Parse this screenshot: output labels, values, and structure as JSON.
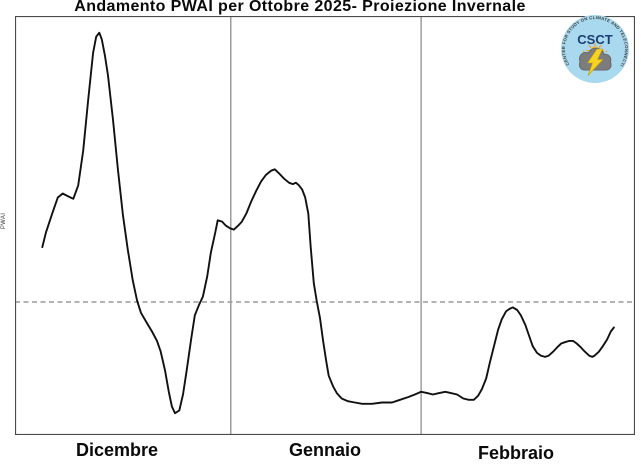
{
  "title": "Andamento PWAI per Ottobre 2025- Proiezione Invernale",
  "y_axis_label": "PWAI",
  "logo": {
    "acronym": "CSCT",
    "ring_text": "CENTER FOR STUDY ON CLIMATE AND TELECONNECTIONS",
    "colors": {
      "circle": "#a9d9ef",
      "acronym": "#1c3e70",
      "ring_text": "#3c3c3c",
      "cloud": "#7c7c7c",
      "cloud_outline": "#666666",
      "lightning": "#f6d321",
      "sun": "#f2a33c"
    }
  },
  "colors": {
    "line": "#111111",
    "grid": "#8f8f8f",
    "zero_dashed": "#9a9a9a",
    "border": "#4a4a4a",
    "background": "#ffffff"
  },
  "chart_data": {
    "type": "line",
    "title": "Andamento PWAI per Ottobre 2025- Proiezione Invernale",
    "ylabel": "PWAI",
    "legend": "none",
    "y_tick_labels": "none (unlabeled axis)",
    "zero_reference": "horizontal dashed line at PWAI = 0",
    "ylim": [
      -1.0,
      2.15
    ],
    "x_axis": {
      "categories": [
        "Dicembre",
        "Gennaio",
        "Febbraio"
      ],
      "boundaries_frac": [
        0,
        0.348,
        0.655,
        1
      ]
    },
    "series": [
      {
        "name": "PWAI",
        "x_unit": "fraction of Dicembre–Febbraio span",
        "y_unit": "PWAI index relative to dashed zero line",
        "points": [
          [
            0.044,
            0.41
          ],
          [
            0.05,
            0.52
          ],
          [
            0.06,
            0.66
          ],
          [
            0.069,
            0.78
          ],
          [
            0.077,
            0.81
          ],
          [
            0.085,
            0.79
          ],
          [
            0.094,
            0.77
          ],
          [
            0.102,
            0.87
          ],
          [
            0.11,
            1.13
          ],
          [
            0.118,
            1.51
          ],
          [
            0.126,
            1.86
          ],
          [
            0.131,
            1.98
          ],
          [
            0.136,
            2.01
          ],
          [
            0.14,
            1.96
          ],
          [
            0.145,
            1.84
          ],
          [
            0.15,
            1.69
          ],
          [
            0.158,
            1.36
          ],
          [
            0.166,
            0.99
          ],
          [
            0.174,
            0.65
          ],
          [
            0.182,
            0.39
          ],
          [
            0.19,
            0.16
          ],
          [
            0.197,
            0.01
          ],
          [
            0.203,
            -0.08
          ],
          [
            0.213,
            -0.16
          ],
          [
            0.221,
            -0.22
          ],
          [
            0.229,
            -0.29
          ],
          [
            0.235,
            -0.37
          ],
          [
            0.242,
            -0.51
          ],
          [
            0.248,
            -0.67
          ],
          [
            0.253,
            -0.78
          ],
          [
            0.258,
            -0.83
          ],
          [
            0.265,
            -0.81
          ],
          [
            0.271,
            -0.69
          ],
          [
            0.277,
            -0.51
          ],
          [
            0.284,
            -0.28
          ],
          [
            0.29,
            -0.1
          ],
          [
            0.297,
            -0.02
          ],
          [
            0.303,
            0.04
          ],
          [
            0.31,
            0.19
          ],
          [
            0.316,
            0.37
          ],
          [
            0.323,
            0.52
          ],
          [
            0.327,
            0.61
          ],
          [
            0.334,
            0.6
          ],
          [
            0.34,
            0.57
          ],
          [
            0.347,
            0.55
          ],
          [
            0.353,
            0.54
          ],
          [
            0.36,
            0.57
          ],
          [
            0.366,
            0.6
          ],
          [
            0.373,
            0.66
          ],
          [
            0.381,
            0.75
          ],
          [
            0.389,
            0.83
          ],
          [
            0.397,
            0.9
          ],
          [
            0.405,
            0.95
          ],
          [
            0.413,
            0.98
          ],
          [
            0.419,
            0.99
          ],
          [
            0.426,
            0.96
          ],
          [
            0.434,
            0.92
          ],
          [
            0.442,
            0.89
          ],
          [
            0.448,
            0.88
          ],
          [
            0.453,
            0.89
          ],
          [
            0.458,
            0.87
          ],
          [
            0.463,
            0.84
          ],
          [
            0.468,
            0.78
          ],
          [
            0.473,
            0.66
          ],
          [
            0.477,
            0.41
          ],
          [
            0.482,
            0.14
          ],
          [
            0.487,
            0.0
          ],
          [
            0.492,
            -0.12
          ],
          [
            0.497,
            -0.29
          ],
          [
            0.502,
            -0.44
          ],
          [
            0.506,
            -0.55
          ],
          [
            0.513,
            -0.63
          ],
          [
            0.519,
            -0.68
          ],
          [
            0.527,
            -0.72
          ],
          [
            0.537,
            -0.74
          ],
          [
            0.548,
            -0.75
          ],
          [
            0.56,
            -0.76
          ],
          [
            0.576,
            -0.76
          ],
          [
            0.592,
            -0.75
          ],
          [
            0.608,
            -0.75
          ],
          [
            0.621,
            -0.73
          ],
          [
            0.634,
            -0.71
          ],
          [
            0.645,
            -0.69
          ],
          [
            0.655,
            -0.67
          ],
          [
            0.665,
            -0.68
          ],
          [
            0.674,
            -0.69
          ],
          [
            0.684,
            -0.68
          ],
          [
            0.694,
            -0.67
          ],
          [
            0.703,
            -0.68
          ],
          [
            0.713,
            -0.69
          ],
          [
            0.723,
            -0.72
          ],
          [
            0.732,
            -0.73
          ],
          [
            0.74,
            -0.73
          ],
          [
            0.747,
            -0.7
          ],
          [
            0.753,
            -0.65
          ],
          [
            0.76,
            -0.57
          ],
          [
            0.766,
            -0.45
          ],
          [
            0.773,
            -0.32
          ],
          [
            0.779,
            -0.21
          ],
          [
            0.785,
            -0.13
          ],
          [
            0.792,
            -0.07
          ],
          [
            0.798,
            -0.05
          ],
          [
            0.803,
            -0.04
          ],
          [
            0.81,
            -0.06
          ],
          [
            0.816,
            -0.1
          ],
          [
            0.823,
            -0.17
          ],
          [
            0.829,
            -0.25
          ],
          [
            0.835,
            -0.33
          ],
          [
            0.842,
            -0.38
          ],
          [
            0.848,
            -0.4
          ],
          [
            0.855,
            -0.41
          ],
          [
            0.861,
            -0.4
          ],
          [
            0.868,
            -0.37
          ],
          [
            0.874,
            -0.34
          ],
          [
            0.881,
            -0.31
          ],
          [
            0.887,
            -0.3
          ],
          [
            0.894,
            -0.29
          ],
          [
            0.9,
            -0.29
          ],
          [
            0.906,
            -0.31
          ],
          [
            0.913,
            -0.34
          ],
          [
            0.919,
            -0.37
          ],
          [
            0.926,
            -0.4
          ],
          [
            0.931,
            -0.41
          ],
          [
            0.935,
            -0.4
          ],
          [
            0.942,
            -0.37
          ],
          [
            0.948,
            -0.33
          ],
          [
            0.955,
            -0.28
          ],
          [
            0.961,
            -0.22
          ],
          [
            0.966,
            -0.19
          ]
        ]
      }
    ]
  }
}
